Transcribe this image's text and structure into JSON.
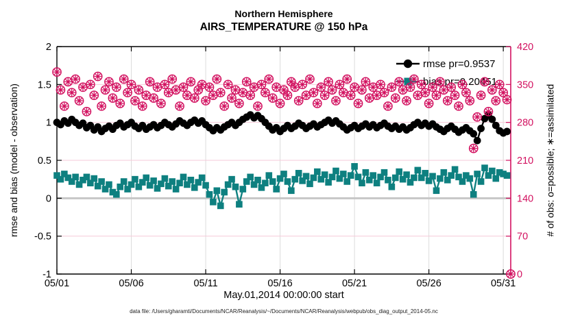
{
  "title": {
    "line1": "Northern Hemisphere",
    "line2": "AIRS_TEMPERATURE @ 150 hPa"
  },
  "axes": {
    "left": {
      "label": "rmse and bias (model - observation)",
      "tick_labels": [
        "2",
        "1.5",
        "1",
        "0.5",
        "0",
        "-0.5",
        "-1"
      ],
      "tick_values": [
        2,
        1.5,
        1,
        0.5,
        0,
        -0.5,
        -1
      ],
      "range": [
        -1,
        2
      ]
    },
    "right": {
      "label": "# of obs: o=possible; ∗=assimilated",
      "tick_labels": [
        "420",
        "350",
        "280",
        "210",
        "140",
        "70",
        "0"
      ],
      "tick_values": [
        420,
        350,
        280,
        210,
        140,
        70,
        0
      ],
      "range": [
        0,
        420
      ]
    },
    "x": {
      "label": "May.01,2014 00:00:00 start",
      "tick_labels": [
        "05/01",
        "05/06",
        "05/11",
        "05/16",
        "05/21",
        "05/26",
        "05/31"
      ],
      "tick_days": [
        0,
        5,
        10,
        15,
        20,
        25,
        30
      ],
      "range_days": [
        0,
        30.5
      ]
    }
  },
  "legend": [
    {
      "label": "rmse pr=0.9537",
      "series": "rmse"
    },
    {
      "label": "bias pr=0.20451",
      "series": "bias"
    }
  ],
  "caption": "data file: /Users/gharamti/Documents/NCAR/Reanalysis/~/Documents/NCAR/Reanalysis/webpub/obs_diag_output_2014-05.nc",
  "colors": {
    "rmse": "#000000",
    "bias": "#0e8080",
    "obs": "#d2105f",
    "grid_vertical": "#dcdcdc",
    "grid_horizontal": "#f5c9d8",
    "zero_line": "#c6c6c6",
    "spine": "#000000"
  },
  "chart_data": {
    "type": "line",
    "title": "Northern Hemisphere AIRS_TEMPERATURE @ 150 hPa",
    "xlabel": "May.01,2014 00:00:00 start",
    "ylabel_left": "rmse and bias (model - observation)",
    "ylabel_right": "# of obs: o=possible; ∗=assimilated",
    "ylim_left": [
      -1,
      2
    ],
    "ylim_right": [
      0,
      420
    ],
    "x_start_day": 0,
    "time_step_days": 0.25,
    "grid": true,
    "legend_position": "top-right-inside",
    "series": [
      {
        "name": "rmse",
        "axis": "left",
        "marker": "filled-circle",
        "line": true,
        "color": "#000000",
        "values": [
          1.0,
          0.97,
          1.02,
          0.99,
          1.04,
          1.0,
          0.96,
          0.99,
          0.93,
          0.96,
          0.9,
          0.94,
          0.88,
          0.92,
          0.95,
          0.91,
          0.96,
          0.99,
          0.94,
          0.97,
          1.0,
          0.95,
          0.92,
          0.96,
          0.91,
          0.94,
          0.97,
          0.93,
          0.96,
          1.0,
          0.97,
          0.94,
          0.98,
          1.02,
          0.99,
          0.96,
          1.0,
          1.03,
          0.99,
          1.02,
          0.97,
          0.93,
          0.89,
          0.93,
          0.9,
          0.94,
          0.97,
          1.0,
          0.96,
          1.0,
          1.04,
          1.07,
          1.1,
          1.06,
          1.09,
          1.05,
          1.0,
          0.95,
          0.9,
          0.93,
          0.88,
          0.92,
          0.96,
          0.92,
          0.95,
          0.99,
          0.96,
          0.92,
          0.95,
          0.98,
          0.94,
          0.97,
          1.0,
          1.03,
          0.99,
          1.02,
          0.98,
          0.94,
          0.9,
          0.93,
          0.96,
          0.92,
          0.95,
          0.98,
          0.94,
          0.97,
          0.93,
          0.96,
          0.99,
          0.95,
          0.92,
          0.95,
          0.91,
          0.94,
          0.9,
          0.93,
          0.97,
          1.0,
          0.96,
          0.99,
          0.95,
          0.98,
          0.94,
          0.91,
          0.88,
          0.92,
          0.95,
          0.91,
          0.87,
          0.9,
          0.93,
          0.89,
          0.85,
          0.76,
          0.92,
          1.05,
          1.1,
          1.04,
          0.96,
          0.89,
          0.86,
          0.88
        ]
      },
      {
        "name": "bias",
        "axis": "left",
        "marker": "filled-square",
        "line": true,
        "color": "#0e8080",
        "values": [
          0.3,
          0.25,
          0.32,
          0.27,
          0.22,
          0.28,
          0.18,
          0.24,
          0.28,
          0.2,
          0.26,
          0.16,
          0.22,
          0.12,
          0.18,
          0.08,
          0.05,
          0.15,
          0.22,
          0.12,
          0.18,
          0.25,
          0.15,
          0.21,
          0.27,
          0.17,
          0.23,
          0.13,
          0.19,
          0.26,
          0.16,
          0.22,
          0.12,
          0.2,
          0.28,
          0.18,
          0.24,
          0.14,
          0.21,
          0.27,
          0.17,
          0.05,
          -0.05,
          0.1,
          -0.1,
          0.08,
          0.18,
          0.25,
          0.15,
          -0.08,
          0.12,
          0.22,
          0.28,
          0.18,
          0.24,
          0.14,
          0.2,
          0.3,
          0.22,
          0.12,
          0.26,
          0.32,
          0.22,
          0.1,
          0.25,
          0.33,
          0.23,
          0.29,
          0.19,
          0.27,
          0.35,
          0.25,
          0.31,
          0.21,
          0.28,
          0.36,
          0.26,
          0.32,
          0.22,
          0.3,
          0.42,
          0.28,
          0.2,
          0.34,
          0.24,
          0.3,
          0.2,
          0.28,
          0.34,
          0.24,
          0.15,
          0.27,
          0.35,
          0.25,
          0.31,
          0.21,
          0.27,
          0.37,
          0.27,
          0.33,
          0.23,
          0.29,
          0.1,
          0.26,
          0.34,
          0.24,
          0.3,
          0.38,
          0.28,
          0.22,
          0.3,
          0.26,
          0.05,
          0.32,
          0.22,
          0.4,
          0.3,
          0.36,
          0.26,
          0.34,
          0.32,
          0.3
        ]
      },
      {
        "name": "obs_possible",
        "axis": "right",
        "marker": "circle",
        "line": false,
        "color": "#d2105f",
        "values": [
          373,
          340,
          310,
          355,
          335,
          360,
          320,
          345,
          300,
          350,
          330,
          365,
          310,
          340,
          355,
          325,
          345,
          315,
          360,
          335,
          350,
          320,
          340,
          310,
          330,
          355,
          325,
          345,
          315,
          350,
          335,
          360,
          340,
          310,
          345,
          330,
          355,
          325,
          340,
          350,
          320,
          345,
          330,
          360,
          335,
          310,
          350,
          325,
          340,
          315,
          335,
          355,
          330,
          345,
          310,
          350,
          335,
          360,
          325,
          345,
          315,
          340,
          330,
          355,
          345,
          320,
          350,
          330,
          360,
          335,
          315,
          345,
          330,
          355,
          340,
          320,
          350,
          335,
          360,
          330,
          345,
          315,
          340,
          355,
          325,
          345,
          330,
          350,
          335,
          310,
          345,
          325,
          355,
          340,
          320,
          345,
          360,
          330,
          350,
          335,
          315,
          345,
          330,
          355,
          340,
          320,
          345,
          330,
          310,
          350,
          335,
          320,
          232,
          290,
          330,
          355,
          300,
          340,
          320,
          350,
          335,
          322,
          0
        ]
      },
      {
        "name": "obs_assimilated",
        "axis": "right",
        "marker": "asterisk",
        "line": false,
        "color": "#d2105f",
        "values": [
          373,
          340,
          310,
          355,
          335,
          360,
          320,
          345,
          300,
          350,
          330,
          365,
          310,
          340,
          355,
          325,
          345,
          315,
          360,
          335,
          350,
          320,
          340,
          310,
          330,
          355,
          325,
          345,
          315,
          350,
          335,
          360,
          340,
          310,
          345,
          330,
          355,
          325,
          340,
          350,
          320,
          345,
          330,
          360,
          335,
          310,
          350,
          325,
          340,
          315,
          335,
          355,
          330,
          345,
          310,
          350,
          335,
          360,
          325,
          345,
          315,
          340,
          330,
          355,
          345,
          320,
          350,
          330,
          360,
          335,
          315,
          345,
          330,
          355,
          340,
          320,
          350,
          335,
          360,
          330,
          345,
          315,
          340,
          355,
          325,
          345,
          330,
          350,
          335,
          310,
          345,
          325,
          355,
          340,
          320,
          345,
          360,
          330,
          350,
          335,
          315,
          345,
          330,
          355,
          340,
          320,
          345,
          330,
          310,
          350,
          335,
          320,
          232,
          290,
          330,
          355,
          300,
          340,
          320,
          350,
          335,
          322,
          0
        ]
      }
    ]
  }
}
